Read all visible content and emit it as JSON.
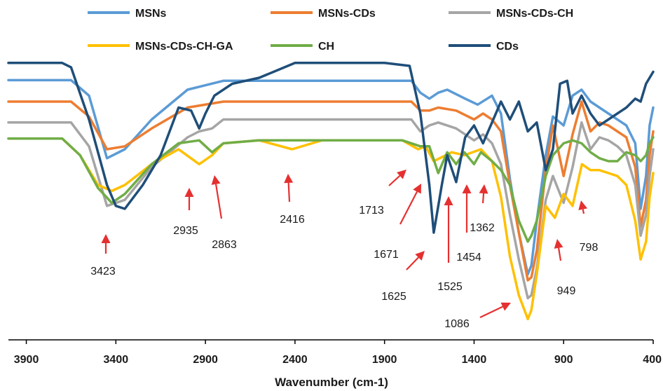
{
  "chart_data": {
    "type": "line",
    "title": "",
    "xlabel": "Wavenumber (cm-1)",
    "ylabel": "",
    "x_reversed": true,
    "xlim": [
      4000,
      400
    ],
    "ylim": [
      0,
      1
    ],
    "y_axis_shown": false,
    "grid": false,
    "legend_position": "top",
    "x_ticks": [
      {
        "value": 3900,
        "label": "3900"
      },
      {
        "value": 3400,
        "label": "3400"
      },
      {
        "value": 2900,
        "label": "2900"
      },
      {
        "value": 2400,
        "label": "2400"
      },
      {
        "value": 1900,
        "label": "1900"
      },
      {
        "value": 1400,
        "label": "1400"
      },
      {
        "value": 900,
        "label": "900"
      },
      {
        "value": 400,
        "label": "400"
      }
    ],
    "series": [
      {
        "name": "MSNs",
        "color": "#5B9BD5",
        "points": [
          [
            4000,
            0.872
          ],
          [
            3650,
            0.872
          ],
          [
            3550,
            0.82
          ],
          [
            3450,
            0.61
          ],
          [
            3350,
            0.64
          ],
          [
            3200,
            0.74
          ],
          [
            3000,
            0.84
          ],
          [
            2800,
            0.87
          ],
          [
            1750,
            0.87
          ],
          [
            1700,
            0.83
          ],
          [
            1650,
            0.81
          ],
          [
            1600,
            0.83
          ],
          [
            1550,
            0.84
          ],
          [
            1450,
            0.81
          ],
          [
            1380,
            0.79
          ],
          [
            1300,
            0.82
          ],
          [
            1250,
            0.76
          ],
          [
            1200,
            0.54
          ],
          [
            1150,
            0.36
          ],
          [
            1100,
            0.22
          ],
          [
            1080,
            0.25
          ],
          [
            1050,
            0.4
          ],
          [
            1000,
            0.62
          ],
          [
            960,
            0.75
          ],
          [
            900,
            0.72
          ],
          [
            850,
            0.82
          ],
          [
            800,
            0.84
          ],
          [
            750,
            0.8
          ],
          [
            700,
            0.78
          ],
          [
            650,
            0.76
          ],
          [
            600,
            0.74
          ],
          [
            550,
            0.72
          ],
          [
            500,
            0.66
          ],
          [
            470,
            0.44
          ],
          [
            440,
            0.55
          ],
          [
            420,
            0.72
          ],
          [
            400,
            0.78
          ]
        ]
      },
      {
        "name": "MSNs-CDs",
        "color": "#ED7D31",
        "points": [
          [
            4000,
            0.8
          ],
          [
            3650,
            0.8
          ],
          [
            3550,
            0.75
          ],
          [
            3450,
            0.64
          ],
          [
            3350,
            0.65
          ],
          [
            3200,
            0.71
          ],
          [
            3000,
            0.78
          ],
          [
            2800,
            0.8
          ],
          [
            1750,
            0.8
          ],
          [
            1700,
            0.77
          ],
          [
            1650,
            0.77
          ],
          [
            1600,
            0.78
          ],
          [
            1500,
            0.77
          ],
          [
            1400,
            0.74
          ],
          [
            1350,
            0.76
          ],
          [
            1300,
            0.74
          ],
          [
            1250,
            0.7
          ],
          [
            1200,
            0.52
          ],
          [
            1150,
            0.36
          ],
          [
            1100,
            0.2
          ],
          [
            1080,
            0.21
          ],
          [
            1050,
            0.3
          ],
          [
            1000,
            0.57
          ],
          [
            960,
            0.72
          ],
          [
            900,
            0.55
          ],
          [
            850,
            0.69
          ],
          [
            800,
            0.8
          ],
          [
            750,
            0.7
          ],
          [
            700,
            0.73
          ],
          [
            650,
            0.72
          ],
          [
            600,
            0.7
          ],
          [
            550,
            0.68
          ],
          [
            500,
            0.58
          ],
          [
            470,
            0.38
          ],
          [
            440,
            0.47
          ],
          [
            420,
            0.62
          ],
          [
            400,
            0.7
          ]
        ]
      },
      {
        "name": "MSNs-CDs-CH",
        "color": "#A5A5A5",
        "points": [
          [
            4000,
            0.73
          ],
          [
            3650,
            0.73
          ],
          [
            3550,
            0.65
          ],
          [
            3450,
            0.45
          ],
          [
            3350,
            0.47
          ],
          [
            3200,
            0.58
          ],
          [
            3000,
            0.68
          ],
          [
            2935,
            0.7
          ],
          [
            2863,
            0.71
          ],
          [
            2800,
            0.74
          ],
          [
            2600,
            0.74
          ],
          [
            1750,
            0.74
          ],
          [
            1700,
            0.7
          ],
          [
            1650,
            0.72
          ],
          [
            1600,
            0.73
          ],
          [
            1500,
            0.71
          ],
          [
            1400,
            0.67
          ],
          [
            1350,
            0.69
          ],
          [
            1300,
            0.66
          ],
          [
            1250,
            0.59
          ],
          [
            1200,
            0.42
          ],
          [
            1150,
            0.27
          ],
          [
            1100,
            0.14
          ],
          [
            1080,
            0.15
          ],
          [
            1050,
            0.24
          ],
          [
            1000,
            0.47
          ],
          [
            960,
            0.55
          ],
          [
            900,
            0.46
          ],
          [
            850,
            0.58
          ],
          [
            800,
            0.73
          ],
          [
            750,
            0.64
          ],
          [
            700,
            0.68
          ],
          [
            650,
            0.67
          ],
          [
            600,
            0.65
          ],
          [
            550,
            0.62
          ],
          [
            500,
            0.52
          ],
          [
            470,
            0.35
          ],
          [
            440,
            0.42
          ],
          [
            420,
            0.55
          ],
          [
            400,
            0.64
          ]
        ]
      },
      {
        "name": "MSNs-CDs-CH-GA",
        "color": "#FFC000",
        "points": [
          [
            4000,
            0.676
          ],
          [
            3700,
            0.676
          ],
          [
            3600,
            0.62
          ],
          [
            3500,
            0.52
          ],
          [
            3423,
            0.5
          ],
          [
            3350,
            0.52
          ],
          [
            3200,
            0.59
          ],
          [
            3050,
            0.64
          ],
          [
            2935,
            0.59
          ],
          [
            2863,
            0.62
          ],
          [
            2800,
            0.66
          ],
          [
            2600,
            0.67
          ],
          [
            2416,
            0.64
          ],
          [
            2250,
            0.67
          ],
          [
            1800,
            0.67
          ],
          [
            1713,
            0.64
          ],
          [
            1671,
            0.65
          ],
          [
            1625,
            0.6
          ],
          [
            1525,
            0.63
          ],
          [
            1454,
            0.62
          ],
          [
            1362,
            0.64
          ],
          [
            1300,
            0.6
          ],
          [
            1250,
            0.48
          ],
          [
            1200,
            0.28
          ],
          [
            1150,
            0.15
          ],
          [
            1100,
            0.07
          ],
          [
            1080,
            0.1
          ],
          [
            1050,
            0.22
          ],
          [
            1000,
            0.45
          ],
          [
            949,
            0.41
          ],
          [
            900,
            0.49
          ],
          [
            850,
            0.45
          ],
          [
            798,
            0.59
          ],
          [
            750,
            0.57
          ],
          [
            700,
            0.57
          ],
          [
            650,
            0.56
          ],
          [
            600,
            0.55
          ],
          [
            550,
            0.52
          ],
          [
            500,
            0.4
          ],
          [
            470,
            0.27
          ],
          [
            440,
            0.33
          ],
          [
            420,
            0.48
          ],
          [
            400,
            0.56
          ]
        ]
      },
      {
        "name": "CH",
        "color": "#70AD47",
        "points": [
          [
            4000,
            0.676
          ],
          [
            3700,
            0.676
          ],
          [
            3600,
            0.62
          ],
          [
            3500,
            0.51
          ],
          [
            3423,
            0.46
          ],
          [
            3350,
            0.49
          ],
          [
            3200,
            0.59
          ],
          [
            3050,
            0.66
          ],
          [
            2935,
            0.67
          ],
          [
            2863,
            0.63
          ],
          [
            2800,
            0.66
          ],
          [
            2600,
            0.67
          ],
          [
            2400,
            0.67
          ],
          [
            1800,
            0.67
          ],
          [
            1700,
            0.65
          ],
          [
            1650,
            0.65
          ],
          [
            1600,
            0.56
          ],
          [
            1550,
            0.63
          ],
          [
            1500,
            0.59
          ],
          [
            1454,
            0.63
          ],
          [
            1400,
            0.59
          ],
          [
            1362,
            0.63
          ],
          [
            1300,
            0.6
          ],
          [
            1250,
            0.57
          ],
          [
            1200,
            0.52
          ],
          [
            1150,
            0.4
          ],
          [
            1100,
            0.33
          ],
          [
            1080,
            0.35
          ],
          [
            1050,
            0.4
          ],
          [
            1000,
            0.55
          ],
          [
            960,
            0.62
          ],
          [
            900,
            0.66
          ],
          [
            850,
            0.67
          ],
          [
            800,
            0.66
          ],
          [
            750,
            0.63
          ],
          [
            700,
            0.61
          ],
          [
            650,
            0.6
          ],
          [
            600,
            0.6
          ],
          [
            550,
            0.63
          ],
          [
            500,
            0.62
          ],
          [
            470,
            0.6
          ],
          [
            440,
            0.62
          ],
          [
            420,
            0.66
          ],
          [
            400,
            0.68
          ]
        ]
      },
      {
        "name": "CDs",
        "color": "#1F4E79",
        "points": [
          [
            4000,
            0.93
          ],
          [
            3700,
            0.93
          ],
          [
            3650,
            0.915
          ],
          [
            3550,
            0.74
          ],
          [
            3450,
            0.52
          ],
          [
            3400,
            0.45
          ],
          [
            3350,
            0.44
          ],
          [
            3250,
            0.52
          ],
          [
            3150,
            0.62
          ],
          [
            3050,
            0.78
          ],
          [
            2980,
            0.77
          ],
          [
            2935,
            0.71
          ],
          [
            2900,
            0.76
          ],
          [
            2850,
            0.82
          ],
          [
            2750,
            0.86
          ],
          [
            2600,
            0.88
          ],
          [
            2400,
            0.93
          ],
          [
            1900,
            0.93
          ],
          [
            1760,
            0.92
          ],
          [
            1700,
            0.76
          ],
          [
            1650,
            0.52
          ],
          [
            1625,
            0.36
          ],
          [
            1580,
            0.52
          ],
          [
            1550,
            0.62
          ],
          [
            1500,
            0.53
          ],
          [
            1450,
            0.68
          ],
          [
            1400,
            0.72
          ],
          [
            1350,
            0.66
          ],
          [
            1300,
            0.73
          ],
          [
            1250,
            0.8
          ],
          [
            1200,
            0.74
          ],
          [
            1150,
            0.8
          ],
          [
            1100,
            0.7
          ],
          [
            1050,
            0.73
          ],
          [
            1000,
            0.57
          ],
          [
            960,
            0.64
          ],
          [
            920,
            0.86
          ],
          [
            880,
            0.87
          ],
          [
            850,
            0.76
          ],
          [
            800,
            0.82
          ],
          [
            750,
            0.76
          ],
          [
            700,
            0.72
          ],
          [
            650,
            0.74
          ],
          [
            600,
            0.76
          ],
          [
            550,
            0.78
          ],
          [
            500,
            0.81
          ],
          [
            470,
            0.8
          ],
          [
            440,
            0.86
          ],
          [
            420,
            0.88
          ],
          [
            400,
            0.9
          ]
        ]
      }
    ],
    "annotations": [
      {
        "label": "3423",
        "x": 3423
      },
      {
        "label": "2935",
        "x": 2935
      },
      {
        "label": "2863",
        "x": 2863
      },
      {
        "label": "2416",
        "x": 2416
      },
      {
        "label": "1713",
        "x": 1713
      },
      {
        "label": "1671",
        "x": 1671
      },
      {
        "label": "1625",
        "x": 1625
      },
      {
        "label": "1525",
        "x": 1525
      },
      {
        "label": "1454",
        "x": 1454
      },
      {
        "label": "1362",
        "x": 1362
      },
      {
        "label": "1086",
        "x": 1086
      },
      {
        "label": "949",
        "x": 949
      },
      {
        "label": "798",
        "x": 798
      }
    ]
  }
}
